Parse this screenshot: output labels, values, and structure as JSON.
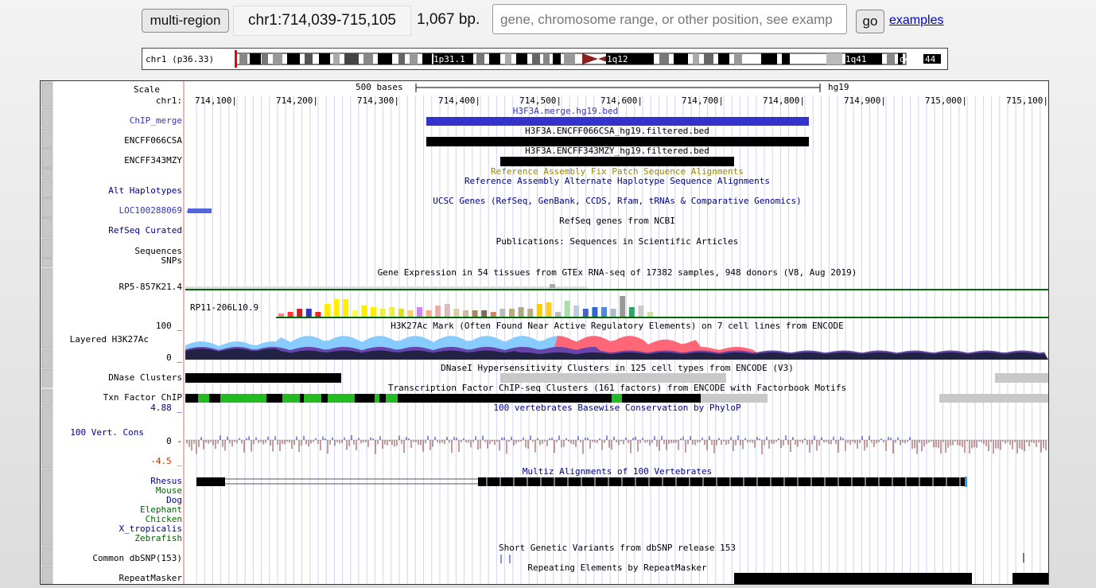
{
  "nav": {
    "multiregion_label": "multi-region",
    "position": "chr1:714,039-715,105",
    "size": "1,067 bp.",
    "search_placeholder": "gene, chromosome range, or other position, see examp",
    "go_label": "go",
    "examples_label": "examples"
  },
  "ideogram": {
    "chrom_label": "chr1 (p36.33)",
    "band1": "1p31.1",
    "band2": "1q12",
    "band3": "1q41",
    "band4": "q43",
    "band5": "44"
  },
  "ruler": {
    "scale_label": "Scale",
    "chrom_label": "chr1:",
    "scale_text": "500 bases",
    "assembly": "hg19",
    "ticks": [
      "714,100|",
      "714,200|",
      "714,300|",
      "714,400|",
      "714,500|",
      "714,600|",
      "714,700|",
      "714,800|",
      "714,900|",
      "715,000|",
      "715,100|"
    ]
  },
  "labels": {
    "chip_merge": "ChIP_merge",
    "encff066": "ENCFF066CSA",
    "encff343": "ENCFF343MZY",
    "alt_hap": "Alt Haplotypes",
    "loc": "LOC100288069",
    "refseq": "RefSeq Curated",
    "sequences": "Sequences",
    "snps": "SNPs",
    "rp5": "RP5-857K21.4",
    "rp11": "RP11-206L10.9",
    "h3k27_max": "100 _",
    "h3k27": "Layered H3K27Ac",
    "h3k27_min": "0 _",
    "dnase": "DNase Clusters",
    "txn": "Txn Factor ChIP",
    "cons_max": "4.88 _",
    "cons": "100 Vert. Cons",
    "cons_zero": "0 -",
    "cons_min": "-4.5 _",
    "rhesus": "Rhesus",
    "mouse": "Mouse",
    "dog": "Dog",
    "elephant": "Elephant",
    "chicken": "Chicken",
    "xtrop": "X_tropicalis",
    "zebrafish": "Zebrafish",
    "dbsnp": "Common dbSNP(153)",
    "repeatmasker": "RepeatMasker"
  },
  "titles": {
    "chip_merge": "H3F3A.merge.hg19.bed",
    "encff066": "H3F3A.ENCFF066CSA_hg19.filtered.bed",
    "encff343": "H3F3A.ENCFF343MZY_hg19.filtered.bed",
    "fix_patch": "Reference Assembly Fix Patch Sequence Alignments",
    "alt_hap": "Reference Assembly Alternate Haplotype Sequence Alignments",
    "ucsc": "UCSC Genes (RefSeq, GenBank, CCDS, Rfam, tRNAs & Comparative Genomics)",
    "refseq": "RefSeq genes from NCBI",
    "pubs": "Publications: Sequences in Scientific Articles",
    "gtex": "Gene Expression in 54 tissues from GTEx RNA-seq of 17382 samples, 948 donors (V8, Aug 2019)",
    "h3k27": "H3K27Ac Mark (Often Found Near Active Regulatory Elements) on 7 cell lines from ENCODE",
    "dnase": "DNaseI Hypersensitivity Clusters in 125 cell types from ENCODE (V3)",
    "txn": "Transcription Factor ChIP-seq Clusters (161 factors) from ENCODE with Factorbook Motifs",
    "phylop": "100 vertebrates Basewise Conservation by PhyloP",
    "multiz": "Multiz Alignments of 100 Vertebrates",
    "dbsnp": "Short Genetic Variants from dbSNP release 153",
    "repeat": "Repeating Elements by RepeatMasker"
  },
  "colors": {
    "chip_merge": "#3333cc",
    "label_blue": "#000088",
    "link_blue": "#3333cc",
    "fix_patch": "#998800",
    "green_mark": "#006600",
    "neg_red": "#cc3300",
    "conserv_blue": "#2222aa",
    "conserv_red": "#8b3a3a",
    "species_green": "#006600"
  }
}
